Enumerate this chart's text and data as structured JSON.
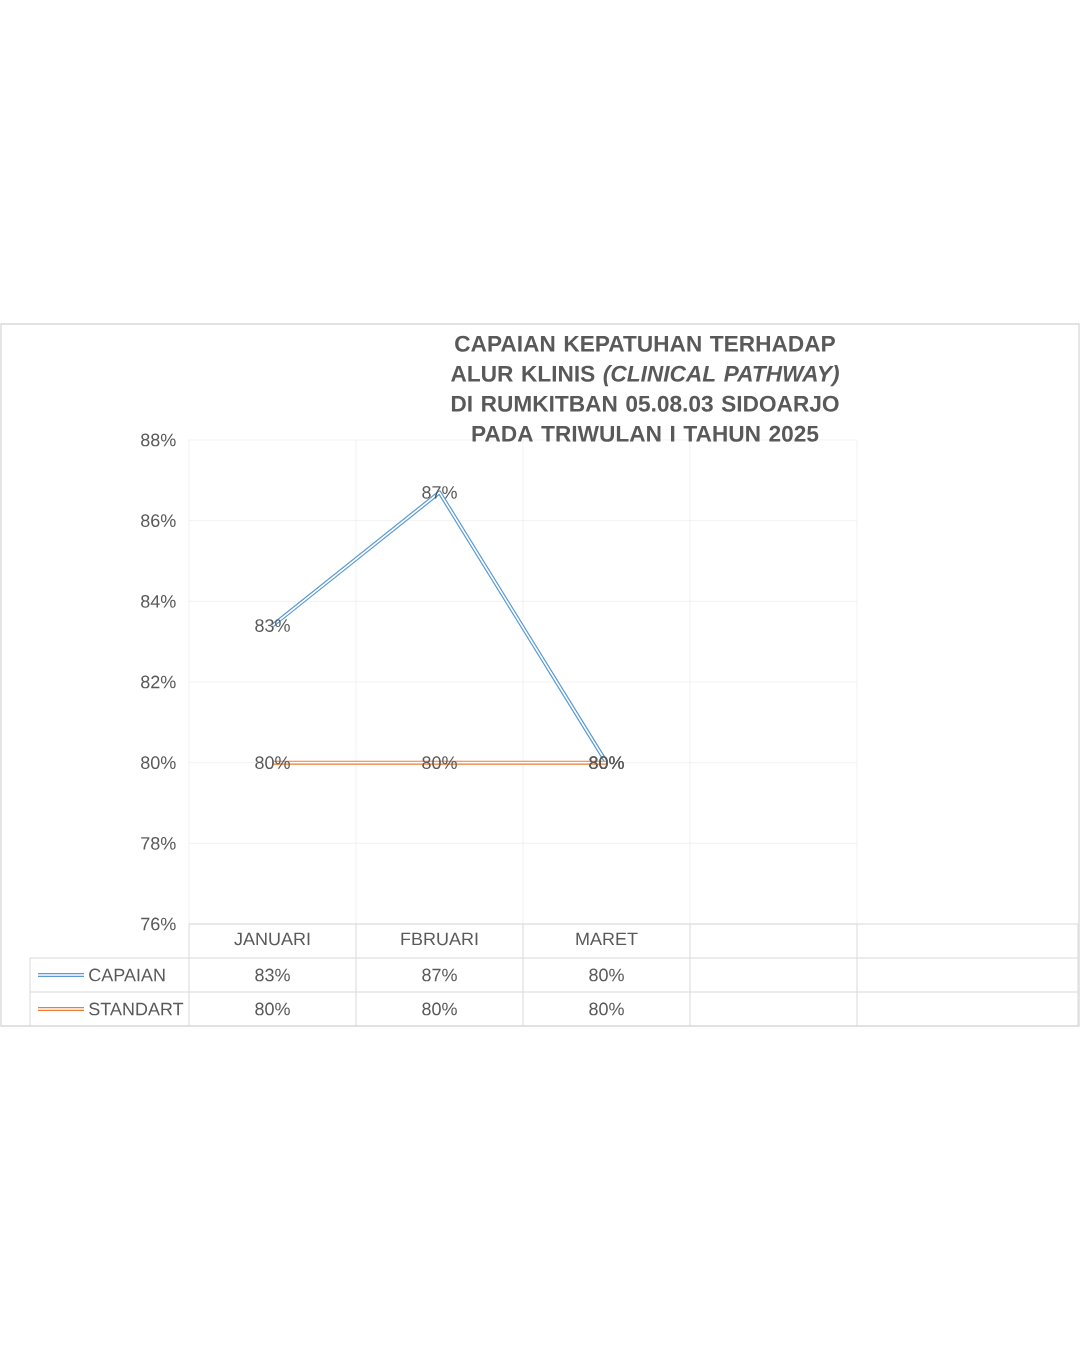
{
  "chart_data": {
    "type": "line",
    "title": "CAPAIAN KEPATUHAN TERHADAP ALUR KLINIS *(CLINICAL PATHWAY)*",
    "subtitle": "DI RUMKITBAN 05.08.03 SIDOARJO PADA TRIWULAN I TAHUN 2025",
    "categories": [
      "JANUARI",
      "FBRUARI",
      "MARET",
      null
    ],
    "series": [
      {
        "name": "CAPAIAN",
        "color": "#5b9bd5",
        "values": [
          83.4,
          86.7,
          80,
          null
        ],
        "value_labels": [
          "83%",
          "87%",
          "80%",
          null
        ]
      },
      {
        "name": "STANDART",
        "color": "#ed7d31",
        "values": [
          80,
          80,
          80,
          null
        ],
        "value_labels": [
          "80%",
          "80%",
          "80%",
          null
        ]
      }
    ],
    "ylim": [
      76,
      88
    ],
    "yticks": [
      {
        "value": 76,
        "label": "76%"
      },
      {
        "value": 78,
        "label": "78%"
      },
      {
        "value": 80,
        "label": "80%"
      },
      {
        "value": 82,
        "label": "82%"
      },
      {
        "value": 84,
        "label": "84%"
      },
      {
        "value": 86,
        "label": "86%"
      },
      {
        "value": 88,
        "label": "88%"
      }
    ],
    "grid": true,
    "legend": "bottom",
    "marker": "none"
  }
}
